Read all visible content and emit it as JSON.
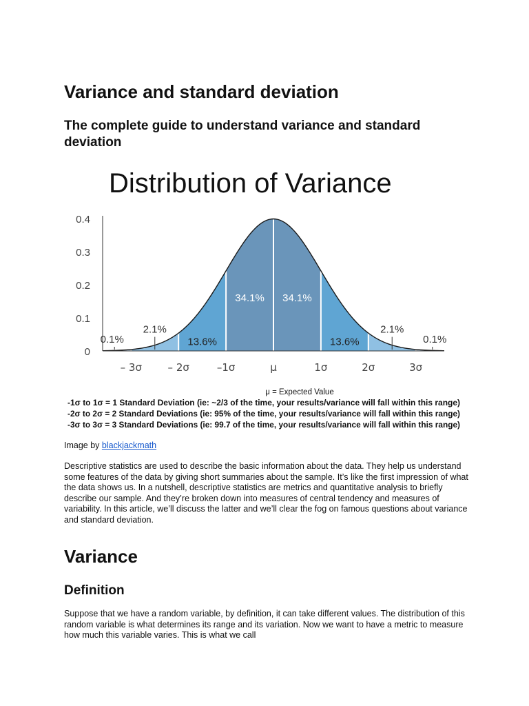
{
  "document": {
    "title": "Variance and standard deviation",
    "subtitle": "The complete guide to understand variance and standard deviation",
    "caption_prefix": "Image by ",
    "caption_link": "blackjackmath",
    "intro_paragraph": "Descriptive statistics are used to describe the basic information about the data. They help us understand some features of the data by giving short summaries about the sample. It’s like the first impression of what the data shows us. In a nutshell, descriptive statistics are metrics and quantitative analysis to briefly describe our sample. And they’re broken down into measures of central tendency and measures of variability. In this article, we’ll discuss the latter and we’ll clear the fog on famous questions about variance and standard deviation.",
    "section_heading": "Variance",
    "subsection_heading": "Definition",
    "definition_paragraph": "Suppose that we have a random variable, by definition, it can take different values. The distribution of this random variable is what determines its range and its variation. Now we want to have a metric to measure how much this variable varies. This is what we call"
  },
  "chart_data": {
    "type": "area",
    "title": "Distribution of Variance",
    "ylim": [
      0,
      0.4
    ],
    "yticks": [
      0,
      0.1,
      0.2,
      0.3,
      0.4
    ],
    "ytick_labels": [
      "0",
      "0.1",
      "0.2",
      "0.3",
      "0.4"
    ],
    "xlim": [
      -3.6,
      3.6
    ],
    "xticks": [
      -3,
      -2,
      -1,
      0,
      1,
      2,
      3
    ],
    "xtick_labels": [
      "– 3σ",
      "– 2σ",
      "–1σ",
      "μ",
      "1σ",
      "2σ",
      "3σ"
    ],
    "regions": [
      {
        "from": -3.6,
        "to": -3,
        "label": "0.1%",
        "color": "#c4dbee"
      },
      {
        "from": -3,
        "to": -2,
        "label": "2.1%",
        "color": "#8fc0e3"
      },
      {
        "from": -2,
        "to": -1,
        "label": "13.6%",
        "color": "#5fa5d3"
      },
      {
        "from": -1,
        "to": 0,
        "label": "34.1%",
        "color": "#6a95ba"
      },
      {
        "from": 0,
        "to": 1,
        "label": "34.1%",
        "color": "#6a95ba"
      },
      {
        "from": 1,
        "to": 2,
        "label": "13.6%",
        "color": "#5fa5d3"
      },
      {
        "from": 2,
        "to": 3,
        "label": "2.1%",
        "color": "#8fc0e3"
      },
      {
        "from": 3,
        "to": 3.6,
        "label": "0.1%",
        "color": "#c4dbee"
      }
    ],
    "legend_lines": [
      "μ = Expected Value",
      "-1σ to 1σ = 1 Standard Deviation (ie: ~2/3 of the time, your results/variance will fall within this range)",
      "-2σ to 2σ = 2 Standard Deviations (ie: 95% of the time, your results/variance will fall within this range)",
      "-3σ to 3σ = 3 Standard Deviations (ie: 99.7 of the time, your results/variance will fall within this range)"
    ],
    "grid": false,
    "curve_color": "#1a1a1a"
  }
}
